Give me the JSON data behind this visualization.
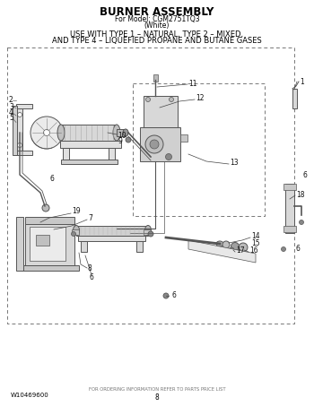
{
  "title_line1": "BURNER ASSEMBLY",
  "title_line2": "For Model: CGM2751TQ3",
  "title_line3": "(White)",
  "subtitle_line1": "USE WITH TYPE 1 – NATURAL, TYPE 2 – MIXED,",
  "subtitle_line2": "AND TYPE 4 – LIQUEFIED PROPANE AND BUTANE GASES",
  "footer_left": "W10469600",
  "footer_center": "FOR ORDERING INFORMATION REFER TO PARTS PRICE LIST",
  "footer_page": "8",
  "bg_color": "#ffffff",
  "text_color": "#000000",
  "diagram_color": "#555555",
  "fig_width": 3.5,
  "fig_height": 4.53,
  "dpi": 100
}
